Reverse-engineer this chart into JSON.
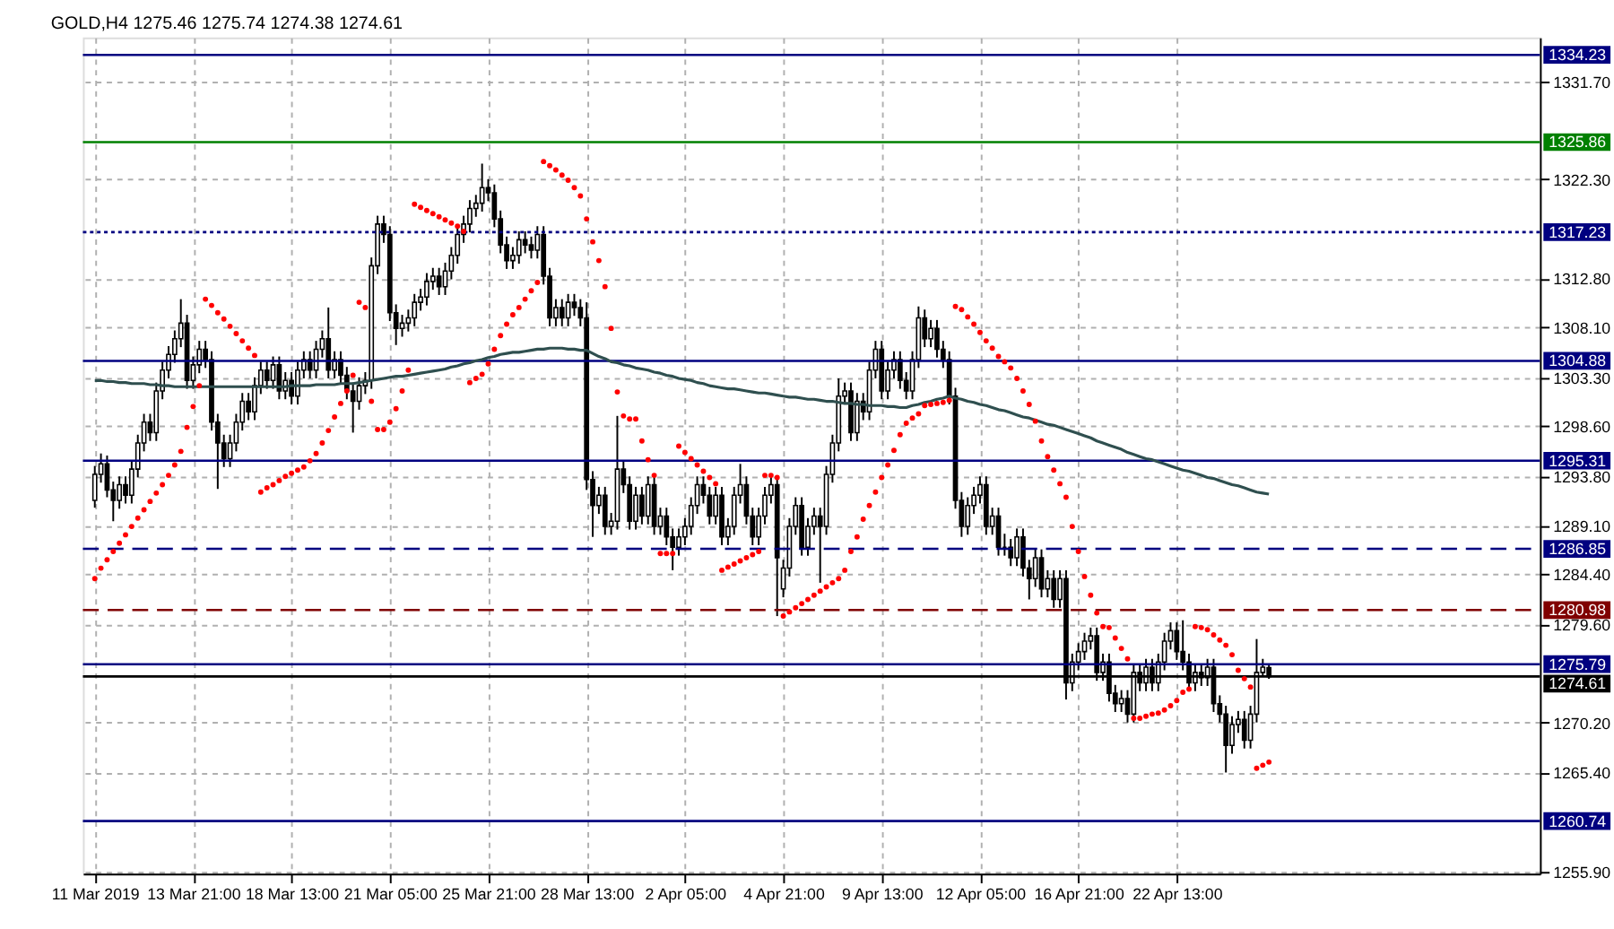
{
  "chart_data": {
    "type": "candlestick",
    "title": "GOLD,H4  1275.46 1275.74 1274.38 1274.61",
    "categories": [
      "11 Mar 2019",
      null,
      null,
      null,
      null,
      null,
      null,
      null,
      null,
      null,
      null,
      null,
      null,
      null,
      null,
      null,
      "13 Mar 21:00",
      null,
      null,
      null,
      null,
      null,
      null,
      null,
      null,
      null,
      null,
      null,
      null,
      null,
      null,
      null,
      "18 Mar 13:00",
      null,
      null,
      null,
      null,
      null,
      null,
      null,
      null,
      null,
      null,
      null,
      null,
      null,
      null,
      null,
      "21 Mar 05:00",
      null,
      null,
      null,
      null,
      null,
      null,
      null,
      null,
      null,
      null,
      null,
      null,
      null,
      null,
      null,
      "25 Mar 21:00",
      null,
      null,
      null,
      null,
      null,
      null,
      null,
      null,
      null,
      null,
      null,
      null,
      null,
      null,
      null,
      "28 Mar 13:00",
      null,
      null,
      null,
      null,
      null,
      null,
      null,
      null,
      null,
      null,
      null,
      null,
      null,
      null,
      null,
      "2 Apr 05:00",
      null,
      null,
      null,
      null,
      null,
      null,
      null,
      null,
      null,
      null,
      null,
      null,
      null,
      null,
      null,
      "4 Apr 21:00",
      null,
      null,
      null,
      null,
      null,
      null,
      null,
      null,
      null,
      null,
      null,
      null,
      null,
      null,
      null,
      "9 Apr 13:00",
      null,
      null,
      null,
      null,
      null,
      null,
      null,
      null,
      null,
      null,
      null,
      null,
      null,
      null,
      null,
      "12 Apr 05:00",
      null,
      null,
      null,
      null,
      null,
      null,
      null,
      null,
      null,
      null,
      null,
      null,
      null,
      null,
      null,
      "16 Apr 21:00",
      null,
      null,
      null,
      null,
      null,
      null,
      null,
      null,
      null,
      null,
      null,
      null,
      null,
      null,
      null,
      "22 Apr 13:00",
      null,
      null,
      null,
      null,
      null,
      null,
      null,
      null,
      null,
      null,
      null,
      null,
      null,
      null,
      null
    ],
    "ohlc": [
      [
        1291.5,
        1294.8,
        1290.8,
        1294.0
      ],
      [
        1294.0,
        1296.0,
        1293.2,
        1295.0
      ],
      [
        1295.0,
        1295.8,
        1291.8,
        1292.5
      ],
      [
        1292.5,
        1293.3,
        1289.5,
        1291.5
      ],
      [
        1291.5,
        1293.8,
        1290.7,
        1293.0
      ],
      [
        1293.0,
        1293.8,
        1291.2,
        1292.0
      ],
      [
        1292.0,
        1295.3,
        1291.2,
        1294.5
      ],
      [
        1294.5,
        1297.8,
        1293.7,
        1297.0
      ],
      [
        1297.0,
        1299.8,
        1296.2,
        1299.0
      ],
      [
        1299.0,
        1299.8,
        1297.2,
        1298.0
      ],
      [
        1298.0,
        1302.8,
        1297.2,
        1302.0
      ],
      [
        1302.0,
        1304.8,
        1301.2,
        1304.0
      ],
      [
        1304.0,
        1306.3,
        1303.2,
        1305.5
      ],
      [
        1305.5,
        1307.8,
        1304.7,
        1307.0
      ],
      [
        1307.0,
        1310.8,
        1306.2,
        1308.5
      ],
      [
        1308.5,
        1309.3,
        1302.2,
        1303.0
      ],
      [
        1303.0,
        1305.3,
        1302.2,
        1304.5
      ],
      [
        1304.5,
        1306.8,
        1303.7,
        1306.0
      ],
      [
        1306.0,
        1306.8,
        1304.2,
        1305.0
      ],
      [
        1305.0,
        1305.8,
        1298.2,
        1299.0
      ],
      [
        1299.0,
        1299.8,
        1292.6,
        1297.0
      ],
      [
        1297.0,
        1297.8,
        1294.7,
        1295.5
      ],
      [
        1295.5,
        1297.8,
        1294.7,
        1297.0
      ],
      [
        1297.0,
        1299.8,
        1296.2,
        1299.0
      ],
      [
        1299.0,
        1301.8,
        1298.2,
        1301.0
      ],
      [
        1301.0,
        1301.8,
        1299.2,
        1300.0
      ],
      [
        1300.0,
        1303.3,
        1299.2,
        1302.5
      ],
      [
        1302.5,
        1304.8,
        1301.7,
        1304.0
      ],
      [
        1304.0,
        1304.8,
        1302.2,
        1303.0
      ],
      [
        1303.0,
        1305.3,
        1302.2,
        1304.5
      ],
      [
        1304.5,
        1305.3,
        1301.2,
        1302.0
      ],
      [
        1302.0,
        1303.8,
        1301.2,
        1303.0
      ],
      [
        1303.0,
        1303.8,
        1300.7,
        1301.5
      ],
      [
        1301.5,
        1304.8,
        1300.7,
        1304.0
      ],
      [
        1304.0,
        1305.8,
        1303.2,
        1305.0
      ],
      [
        1305.0,
        1305.8,
        1303.2,
        1304.0
      ],
      [
        1304.0,
        1306.8,
        1303.2,
        1306.0
      ],
      [
        1306.0,
        1307.8,
        1305.2,
        1307.0
      ],
      [
        1307.0,
        1310.0,
        1303.2,
        1304.0
      ],
      [
        1304.0,
        1305.8,
        1303.2,
        1305.0
      ],
      [
        1305.0,
        1305.8,
        1302.7,
        1303.5
      ],
      [
        1303.5,
        1304.3,
        1301.2,
        1302.0
      ],
      [
        1302.0,
        1302.8,
        1298.0,
        1301.0
      ],
      [
        1301.0,
        1303.3,
        1300.2,
        1302.5
      ],
      [
        1302.5,
        1303.8,
        1301.7,
        1303.0
      ],
      [
        1303.0,
        1314.8,
        1302.2,
        1314.0
      ],
      [
        1314.0,
        1318.8,
        1313.2,
        1318.0
      ],
      [
        1318.0,
        1318.8,
        1316.2,
        1317.0
      ],
      [
        1317.0,
        1317.8,
        1308.7,
        1309.5
      ],
      [
        1309.5,
        1310.3,
        1306.4,
        1308.0
      ],
      [
        1308.0,
        1309.3,
        1307.2,
        1308.5
      ],
      [
        1308.5,
        1309.8,
        1307.7,
        1309.0
      ],
      [
        1309.0,
        1311.3,
        1308.2,
        1310.5
      ],
      [
        1310.5,
        1311.8,
        1309.7,
        1311.0
      ],
      [
        1311.0,
        1313.3,
        1310.2,
        1312.5
      ],
      [
        1312.5,
        1313.8,
        1311.7,
        1313.0
      ],
      [
        1313.0,
        1313.8,
        1311.2,
        1312.0
      ],
      [
        1312.0,
        1314.3,
        1311.2,
        1313.5
      ],
      [
        1313.5,
        1315.8,
        1312.7,
        1315.0
      ],
      [
        1315.0,
        1317.8,
        1314.2,
        1317.0
      ],
      [
        1317.0,
        1318.8,
        1316.2,
        1318.0
      ],
      [
        1318.0,
        1320.3,
        1317.2,
        1319.5
      ],
      [
        1319.5,
        1320.8,
        1318.7,
        1320.0
      ],
      [
        1320.0,
        1323.8,
        1319.2,
        1321.5
      ],
      [
        1321.5,
        1322.3,
        1320.2,
        1321.0
      ],
      [
        1321.0,
        1321.8,
        1317.7,
        1318.5
      ],
      [
        1318.5,
        1319.3,
        1315.2,
        1316.0
      ],
      [
        1316.0,
        1316.8,
        1313.7,
        1314.5
      ],
      [
        1314.5,
        1315.8,
        1313.7,
        1315.0
      ],
      [
        1315.0,
        1317.3,
        1314.2,
        1316.5
      ],
      [
        1316.5,
        1317.3,
        1315.2,
        1316.0
      ],
      [
        1316.0,
        1316.8,
        1314.7,
        1315.5
      ],
      [
        1315.5,
        1317.8,
        1314.7,
        1317.0
      ],
      [
        1317.0,
        1317.8,
        1312.2,
        1313.0
      ],
      [
        1313.0,
        1313.8,
        1308.2,
        1309.0
      ],
      [
        1309.0,
        1310.8,
        1308.2,
        1310.0
      ],
      [
        1310.0,
        1310.8,
        1308.2,
        1309.0
      ],
      [
        1309.0,
        1311.3,
        1308.2,
        1310.5
      ],
      [
        1310.5,
        1311.3,
        1309.2,
        1310.0
      ],
      [
        1310.0,
        1310.8,
        1308.2,
        1309.0
      ],
      [
        1309.0,
        1310.5,
        1292.5,
        1293.5
      ],
      [
        1293.5,
        1294.3,
        1288.0,
        1291.0
      ],
      [
        1291.0,
        1292.8,
        1290.2,
        1292.0
      ],
      [
        1292.0,
        1292.8,
        1288.2,
        1289.0
      ],
      [
        1289.0,
        1290.3,
        1288.2,
        1289.5
      ],
      [
        1289.5,
        1299.6,
        1288.7,
        1294.5
      ],
      [
        1294.5,
        1295.3,
        1292.2,
        1293.0
      ],
      [
        1293.0,
        1293.8,
        1288.7,
        1289.5
      ],
      [
        1289.5,
        1292.8,
        1288.7,
        1292.0
      ],
      [
        1292.0,
        1292.8,
        1289.2,
        1290.0
      ],
      [
        1290.0,
        1293.8,
        1289.2,
        1293.0
      ],
      [
        1293.0,
        1293.8,
        1288.2,
        1289.0
      ],
      [
        1289.0,
        1290.8,
        1288.2,
        1290.0
      ],
      [
        1290.0,
        1290.8,
        1287.2,
        1288.0
      ],
      [
        1288.0,
        1288.8,
        1284.8,
        1287.0
      ],
      [
        1287.0,
        1288.8,
        1286.2,
        1288.0
      ],
      [
        1288.0,
        1289.8,
        1287.2,
        1289.0
      ],
      [
        1289.0,
        1291.8,
        1288.2,
        1291.0
      ],
      [
        1291.0,
        1293.8,
        1290.2,
        1293.0
      ],
      [
        1293.0,
        1293.8,
        1291.2,
        1292.0
      ],
      [
        1292.0,
        1292.8,
        1289.2,
        1290.0
      ],
      [
        1290.0,
        1292.8,
        1289.2,
        1292.0
      ],
      [
        1292.0,
        1292.8,
        1287.2,
        1288.0
      ],
      [
        1288.0,
        1289.8,
        1287.2,
        1289.0
      ],
      [
        1289.0,
        1292.8,
        1288.2,
        1292.0
      ],
      [
        1292.0,
        1295.0,
        1291.2,
        1293.0
      ],
      [
        1293.0,
        1293.8,
        1289.2,
        1290.0
      ],
      [
        1290.0,
        1290.8,
        1287.2,
        1288.0
      ],
      [
        1288.0,
        1290.8,
        1287.2,
        1290.0
      ],
      [
        1290.0,
        1292.8,
        1289.2,
        1292.0
      ],
      [
        1292.0,
        1293.8,
        1291.2,
        1293.0
      ],
      [
        1293.0,
        1293.8,
        1280.4,
        1286.0
      ],
      [
        1283.0,
        1285.8,
        1282.2,
        1285.0
      ],
      [
        1285.0,
        1289.8,
        1284.2,
        1289.0
      ],
      [
        1289.0,
        1291.8,
        1288.2,
        1291.0
      ],
      [
        1291.0,
        1291.8,
        1286.2,
        1287.0
      ],
      [
        1287.0,
        1289.8,
        1286.2,
        1289.0
      ],
      [
        1289.0,
        1290.8,
        1288.2,
        1290.0
      ],
      [
        1290.0,
        1290.8,
        1283.6,
        1289.0
      ],
      [
        1289.0,
        1294.8,
        1288.2,
        1294.0
      ],
      [
        1294.0,
        1297.8,
        1293.2,
        1297.0
      ],
      [
        1297.0,
        1303.2,
        1296.2,
        1301.5
      ],
      [
        1301.5,
        1302.8,
        1300.7,
        1302.0
      ],
      [
        1302.0,
        1302.8,
        1297.2,
        1298.0
      ],
      [
        1298.0,
        1301.8,
        1297.2,
        1301.0
      ],
      [
        1301.0,
        1301.8,
        1299.2,
        1300.0
      ],
      [
        1300.0,
        1304.8,
        1299.2,
        1304.0
      ],
      [
        1304.0,
        1306.8,
        1303.2,
        1306.0
      ],
      [
        1306.0,
        1306.8,
        1301.2,
        1302.0
      ],
      [
        1302.0,
        1304.8,
        1301.2,
        1304.0
      ],
      [
        1304.0,
        1305.8,
        1303.2,
        1305.0
      ],
      [
        1305.0,
        1305.8,
        1302.2,
        1303.0
      ],
      [
        1303.0,
        1303.8,
        1301.2,
        1302.0
      ],
      [
        1302.0,
        1305.8,
        1301.2,
        1305.0
      ],
      [
        1305.0,
        1310.1,
        1304.2,
        1309.0
      ],
      [
        1309.0,
        1309.8,
        1306.2,
        1307.0
      ],
      [
        1307.0,
        1308.8,
        1306.2,
        1308.0
      ],
      [
        1308.0,
        1308.8,
        1305.2,
        1306.0
      ],
      [
        1306.0,
        1306.8,
        1304.2,
        1305.0
      ],
      [
        1305.0,
        1305.8,
        1300.7,
        1301.5
      ],
      [
        1301.5,
        1302.3,
        1290.7,
        1291.5
      ],
      [
        1291.5,
        1292.3,
        1288.0,
        1289.0
      ],
      [
        1289.0,
        1291.8,
        1288.2,
        1291.0
      ],
      [
        1291.0,
        1292.8,
        1290.2,
        1292.0
      ],
      [
        1292.0,
        1293.8,
        1291.2,
        1293.0
      ],
      [
        1293.0,
        1293.8,
        1288.2,
        1289.0
      ],
      [
        1289.0,
        1290.8,
        1288.2,
        1290.0
      ],
      [
        1290.0,
        1290.8,
        1286.2,
        1287.0
      ],
      [
        1287.0,
        1288.3,
        1286.2,
        1287.0
      ],
      [
        1287.0,
        1287.8,
        1285.2,
        1286.0
      ],
      [
        1286.0,
        1288.8,
        1285.2,
        1288.0
      ],
      [
        1288.0,
        1288.8,
        1284.2,
        1285.0
      ],
      [
        1285.0,
        1285.8,
        1282.0,
        1284.0
      ],
      [
        1284.0,
        1286.8,
        1283.2,
        1286.0
      ],
      [
        1286.0,
        1286.8,
        1282.2,
        1283.0
      ],
      [
        1283.0,
        1284.8,
        1282.2,
        1284.0
      ],
      [
        1284.0,
        1284.8,
        1281.2,
        1282.0
      ],
      [
        1282.0,
        1284.8,
        1281.2,
        1284.0
      ],
      [
        1284.0,
        1284.8,
        1272.4,
        1274.0
      ],
      [
        1274.0,
        1276.8,
        1273.2,
        1276.0
      ],
      [
        1276.0,
        1277.8,
        1275.2,
        1277.0
      ],
      [
        1277.0,
        1278.8,
        1276.2,
        1278.0
      ],
      [
        1278.0,
        1279.3,
        1277.2,
        1278.5
      ],
      [
        1278.5,
        1279.3,
        1274.2,
        1275.0
      ],
      [
        1275.0,
        1276.8,
        1274.2,
        1276.0
      ],
      [
        1276.0,
        1276.8,
        1272.2,
        1273.0
      ],
      [
        1273.0,
        1273.8,
        1271.2,
        1272.0
      ],
      [
        1272.0,
        1273.3,
        1271.2,
        1272.5
      ],
      [
        1272.5,
        1273.3,
        1270.2,
        1271.0
      ],
      [
        1271.0,
        1275.8,
        1270.2,
        1275.0
      ],
      [
        1275.0,
        1275.8,
        1273.2,
        1274.0
      ],
      [
        1274.0,
        1276.3,
        1273.2,
        1275.5
      ],
      [
        1275.5,
        1276.3,
        1273.2,
        1274.0
      ],
      [
        1274.0,
        1276.8,
        1273.2,
        1276.0
      ],
      [
        1276.0,
        1278.8,
        1275.2,
        1278.0
      ],
      [
        1278.0,
        1279.8,
        1277.2,
        1279.0
      ],
      [
        1279.0,
        1279.8,
        1276.2,
        1277.0
      ],
      [
        1277.0,
        1280.0,
        1275.2,
        1276.0
      ],
      [
        1276.0,
        1276.8,
        1273.2,
        1274.0
      ],
      [
        1274.0,
        1275.8,
        1273.2,
        1275.0
      ],
      [
        1275.0,
        1275.8,
        1273.7,
        1274.5
      ],
      [
        1274.5,
        1276.3,
        1273.7,
        1275.5
      ],
      [
        1275.5,
        1276.3,
        1271.2,
        1272.0
      ],
      [
        1272.0,
        1272.8,
        1270.2,
        1271.0
      ],
      [
        1271.0,
        1271.8,
        1265.4,
        1268.0
      ],
      [
        1268.0,
        1270.8,
        1267.2,
        1270.0
      ],
      [
        1270.0,
        1271.3,
        1269.2,
        1270.5
      ],
      [
        1270.5,
        1271.3,
        1267.7,
        1268.5
      ],
      [
        1268.5,
        1271.8,
        1267.7,
        1271.0
      ],
      [
        1271.0,
        1278.2,
        1270.2,
        1275.0
      ],
      [
        1275.0,
        1276.3,
        1274.7,
        1275.5
      ],
      [
        1275.46,
        1275.74,
        1274.38,
        1274.61
      ]
    ],
    "series": [
      {
        "type": "line",
        "color": "#2f4f4f",
        "values": [
          1303.0,
          1303.0,
          1302.9,
          1302.9,
          1302.8,
          1302.8,
          1302.7,
          1302.7,
          1302.7,
          1302.6,
          1302.6,
          1302.5,
          1302.5,
          1302.4,
          1302.4,
          1302.4,
          1302.4,
          1302.4,
          1302.4,
          1302.4,
          1302.4,
          1302.4,
          1302.4,
          1302.4,
          1302.4,
          1302.4,
          1302.4,
          1302.4,
          1302.4,
          1302.4,
          1302.4,
          1302.4,
          1302.5,
          1302.5,
          1302.5,
          1302.5,
          1302.6,
          1302.6,
          1302.6,
          1302.6,
          1302.7,
          1302.7,
          1302.7,
          1302.8,
          1302.9,
          1303.0,
          1303.1,
          1303.2,
          1303.3,
          1303.4,
          1303.4,
          1303.5,
          1303.6,
          1303.7,
          1303.8,
          1303.9,
          1304.0,
          1304.1,
          1304.3,
          1304.4,
          1304.6,
          1304.7,
          1304.9,
          1305.0,
          1305.2,
          1305.3,
          1305.5,
          1305.6,
          1305.7,
          1305.7,
          1305.8,
          1305.9,
          1306.0,
          1306.0,
          1306.1,
          1306.1,
          1306.1,
          1306.0,
          1306.0,
          1305.9,
          1305.9,
          1305.6,
          1305.3,
          1305.1,
          1304.8,
          1304.7,
          1304.5,
          1304.4,
          1304.2,
          1304.1,
          1304.0,
          1303.8,
          1303.7,
          1303.5,
          1303.4,
          1303.2,
          1303.1,
          1303.0,
          1302.8,
          1302.7,
          1302.5,
          1302.4,
          1302.3,
          1302.2,
          1302.2,
          1302.1,
          1302.0,
          1301.9,
          1301.8,
          1301.8,
          1301.7,
          1301.6,
          1301.5,
          1301.4,
          1301.4,
          1301.3,
          1301.2,
          1301.2,
          1301.1,
          1301.0,
          1301.0,
          1300.9,
          1300.8,
          1300.8,
          1300.7,
          1300.7,
          1300.6,
          1300.6,
          1300.6,
          1300.5,
          1300.5,
          1300.4,
          1300.4,
          1300.6,
          1300.7,
          1300.9,
          1301.0,
          1301.2,
          1301.3,
          1301.5,
          1301.3,
          1301.2,
          1301.0,
          1300.9,
          1300.7,
          1300.6,
          1300.4,
          1300.2,
          1300.1,
          1299.9,
          1299.7,
          1299.5,
          1299.4,
          1299.2,
          1299.0,
          1298.8,
          1298.7,
          1298.5,
          1298.3,
          1298.1,
          1297.9,
          1297.7,
          1297.5,
          1297.2,
          1297.0,
          1296.8,
          1296.6,
          1296.4,
          1296.1,
          1295.9,
          1295.7,
          1295.5,
          1295.4,
          1295.2,
          1295.0,
          1294.8,
          1294.6,
          1294.4,
          1294.3,
          1294.1,
          1293.9,
          1293.7,
          1293.6,
          1293.4,
          1293.2,
          1293.0,
          1292.9,
          1292.7,
          1292.5,
          1292.3,
          1292.2,
          1292.1
        ]
      },
      {
        "type": "scatter",
        "color": "#ff0000",
        "marker": "circle",
        "values": [
          1284.0,
          1285.0,
          1285.8,
          1286.6,
          1287.4,
          1288.2,
          1289.0,
          1289.8,
          1290.6,
          1291.4,
          1292.2,
          1293.0,
          1293.9,
          1294.9,
          1296.2,
          1298.5,
          1300.5,
          1302.5,
          1310.8,
          1310.2,
          1309.5,
          1308.9,
          1308.2,
          1307.5,
          1306.8,
          1306.1,
          1305.4,
          1292.3,
          1292.7,
          1293.0,
          1293.4,
          1293.8,
          1294.1,
          1294.4,
          1294.7,
          1295.3,
          1296.0,
          1297.0,
          1298.2,
          1299.5,
          1300.8,
          1302.0,
          1303.5,
          1310.5,
          1310.0,
          1301.0,
          1298.3,
          1298.3,
          1299.0,
          1300.3,
          1302.0,
          1304.0,
          1319.9,
          1319.6,
          1319.3,
          1319.0,
          1318.7,
          1318.4,
          1318.1,
          1317.8,
          1317.3,
          1302.8,
          1303.2,
          1303.6,
          1304.6,
          1306.0,
          1307.3,
          1308.4,
          1309.3,
          1310.0,
          1310.8,
          1311.6,
          1312.4,
          1324.0,
          1323.6,
          1323.2,
          1322.7,
          1322.2,
          1321.5,
          1320.7,
          1318.5,
          1316.3,
          1314.5,
          1312.0,
          1308.0,
          1301.9,
          1299.6,
          1299.3,
          1299.3,
          1297.2,
          1295.4,
          1293.9,
          1286.4,
          1286.4,
          1286.4,
          1296.7,
          1296.1,
          1295.5,
          1294.9,
          1294.3,
          1293.7,
          1293.1,
          1284.8,
          1285.1,
          1285.4,
          1285.7,
          1286.0,
          1286.3,
          1286.6,
          1293.9,
          1293.9,
          1293.7,
          1280.4,
          1280.8,
          1281.2,
          1281.6,
          1282.0,
          1282.4,
          1282.8,
          1283.2,
          1283.6,
          1284.0,
          1284.8,
          1286.6,
          1288.0,
          1289.7,
          1291.0,
          1292.3,
          1293.7,
          1294.9,
          1296.3,
          1297.8,
          1298.9,
          1299.4,
          1299.8,
          1300.6,
          1300.7,
          1300.8,
          1300.9,
          1301.1,
          1310.1,
          1309.8,
          1309.1,
          1308.4,
          1307.6,
          1306.8,
          1306.1,
          1305.3,
          1304.8,
          1304.2,
          1303.2,
          1302.0,
          1300.7,
          1299.1,
          1297.2,
          1295.7,
          1294.4,
          1293.1,
          1291.8,
          1289.0,
          1286.6,
          1284.2,
          1282.4,
          1280.7,
          1279.4,
          1279.3,
          1278.3,
          1277.3,
          1276.3,
          1270.6,
          1270.6,
          1270.8,
          1271.0,
          1271.1,
          1271.4,
          1271.8,
          1272.3,
          1273.1,
          1273.4,
          1279.4,
          1279.3,
          1279.1,
          1278.6,
          1278.1,
          1277.6,
          1276.7,
          1275.2,
          1274.4,
          1273.6,
          1265.8,
          1266.1,
          1266.4
        ]
      }
    ],
    "ylim": [
      1255.7,
      1335.9
    ],
    "yticks": [
      {
        "value": 1331.7,
        "label": "1331.70"
      },
      {
        "value": 1322.3,
        "label": "1322.30"
      },
      {
        "value": 1312.8,
        "label": "1312.80"
      },
      {
        "value": 1308.1,
        "label": "1308.10"
      },
      {
        "value": 1303.3,
        "label": "1303.30"
      },
      {
        "value": 1298.6,
        "label": "1298.60"
      },
      {
        "value": 1293.8,
        "label": "1293.80"
      },
      {
        "value": 1289.1,
        "label": "1289.10"
      },
      {
        "value": 1284.4,
        "label": "1284.40"
      },
      {
        "value": 1279.6,
        "label": "1279.60"
      },
      {
        "value": 1270.2,
        "label": "1270.20"
      },
      {
        "value": 1265.4,
        "label": "1265.40"
      },
      {
        "value": 1255.9,
        "label": "1255.90"
      }
    ],
    "ref_lines": [
      {
        "axis": "y",
        "value": 1334.23,
        "label": "1334.23",
        "color": "#000080",
        "line_style": "solid"
      },
      {
        "axis": "y",
        "value": 1325.86,
        "label": "1325.86",
        "color": "#008000",
        "line_style": "solid"
      },
      {
        "axis": "y",
        "value": 1317.23,
        "label": "1317.23",
        "color": "#000080",
        "line_style": "dotted"
      },
      {
        "axis": "y",
        "value": 1304.88,
        "label": "1304.88",
        "color": "#000080",
        "line_style": "solid"
      },
      {
        "axis": "y",
        "value": 1295.31,
        "label": "1295.31",
        "color": "#000080",
        "line_style": "solid"
      },
      {
        "axis": "y",
        "value": 1286.85,
        "label": "1286.85",
        "color": "#000080",
        "line_style": "dashed"
      },
      {
        "axis": "y",
        "value": 1280.98,
        "label": "1280.98",
        "color": "#800000",
        "line_style": "dashed"
      },
      {
        "axis": "y",
        "value": 1275.79,
        "label": "1275.79",
        "color": "#000080",
        "line_style": "solid"
      },
      {
        "axis": "y",
        "value": 1274.61,
        "label": "1274.61",
        "color": "#000000",
        "line_style": "solid"
      },
      {
        "axis": "y",
        "value": 1260.74,
        "label": "1260.74",
        "color": "#000080",
        "line_style": "solid"
      }
    ],
    "grid": true
  }
}
